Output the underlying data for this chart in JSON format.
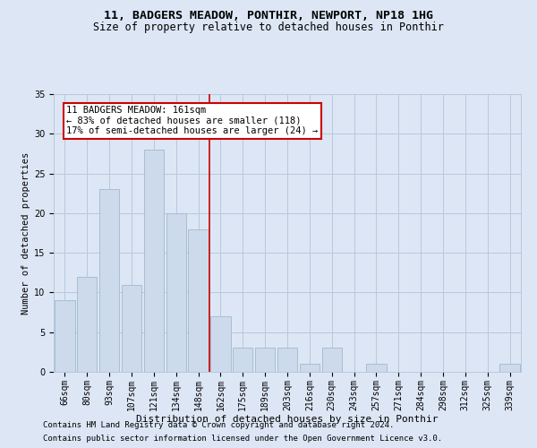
{
  "title1": "11, BADGERS MEADOW, PONTHIR, NEWPORT, NP18 1HG",
  "title2": "Size of property relative to detached houses in Ponthir",
  "xlabel": "Distribution of detached houses by size in Ponthir",
  "ylabel": "Number of detached properties",
  "categories": [
    "66sqm",
    "80sqm",
    "93sqm",
    "107sqm",
    "121sqm",
    "134sqm",
    "148sqm",
    "162sqm",
    "175sqm",
    "189sqm",
    "203sqm",
    "216sqm",
    "230sqm",
    "243sqm",
    "257sqm",
    "271sqm",
    "284sqm",
    "298sqm",
    "312sqm",
    "325sqm",
    "339sqm"
  ],
  "values": [
    9,
    12,
    23,
    11,
    28,
    20,
    18,
    7,
    3,
    3,
    3,
    1,
    3,
    0,
    1,
    0,
    0,
    0,
    0,
    0,
    1
  ],
  "bar_color": "#ccdaeb",
  "bar_edge_color": "#a8bdd4",
  "vline_color": "#cc0000",
  "annotation_line1": "11 BADGERS MEADOW: 161sqm",
  "annotation_line2": "← 83% of detached houses are smaller (118)",
  "annotation_line3": "17% of semi-detached houses are larger (24) →",
  "annotation_box_color": "white",
  "annotation_box_edge_color": "#cc0000",
  "grid_color": "#b8c8dc",
  "bg_color": "#dce6f5",
  "ylim": [
    0,
    35
  ],
  "yticks": [
    0,
    5,
    10,
    15,
    20,
    25,
    30,
    35
  ],
  "footer1": "Contains HM Land Registry data © Crown copyright and database right 2024.",
  "footer2": "Contains public sector information licensed under the Open Government Licence v3.0.",
  "title1_fontsize": 9.5,
  "title2_fontsize": 8.5,
  "xlabel_fontsize": 8,
  "ylabel_fontsize": 7.5,
  "tick_fontsize": 7,
  "annot_fontsize": 7.5,
  "footer_fontsize": 6.5
}
